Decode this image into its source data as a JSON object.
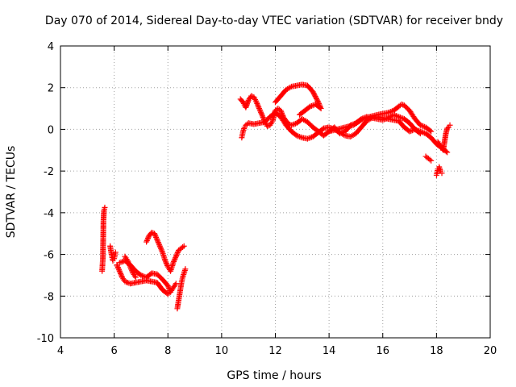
{
  "chart_data": {
    "type": "scatter",
    "title": "Day 070 of 2014, Sidereal Day-to-day VTEC variation (SDTVAR) for receiver bndy",
    "xlabel": "GPS time / hours",
    "ylabel": "SDTVAR / TECUs",
    "xlim": [
      4,
      20
    ],
    "ylim": [
      -10,
      4
    ],
    "xticks": [
      4,
      6,
      8,
      10,
      12,
      14,
      16,
      18,
      20
    ],
    "yticks": [
      -10,
      -8,
      -6,
      -4,
      -2,
      0,
      2,
      4
    ],
    "grid": true,
    "marker": "+",
    "color": "#ff0000",
    "series": [
      {
        "name": "SDTVAR",
        "segments": [
          [
            [
              5.55,
              -6.8
            ],
            [
              5.58,
              -6.2
            ],
            [
              5.6,
              -4.4
            ],
            [
              5.62,
              -3.9
            ],
            [
              5.65,
              -3.75
            ]
          ],
          [
            [
              5.85,
              -5.6
            ],
            [
              5.9,
              -6.0
            ],
            [
              5.95,
              -6.3
            ],
            [
              6.0,
              -6.2
            ],
            [
              6.05,
              -5.9
            ]
          ],
          [
            [
              6.1,
              -6.5
            ],
            [
              6.2,
              -6.8
            ],
            [
              6.3,
              -7.1
            ],
            [
              6.4,
              -7.3
            ],
            [
              6.6,
              -7.4
            ],
            [
              6.8,
              -7.35
            ],
            [
              7.0,
              -7.3
            ],
            [
              7.2,
              -7.25
            ],
            [
              7.4,
              -7.3
            ],
            [
              7.6,
              -7.35
            ],
            [
              7.8,
              -7.7
            ],
            [
              8.0,
              -7.9
            ],
            [
              8.1,
              -7.8
            ],
            [
              8.2,
              -7.6
            ],
            [
              8.3,
              -7.4
            ]
          ],
          [
            [
              6.2,
              -6.4
            ],
            [
              6.4,
              -6.3
            ],
            [
              6.6,
              -6.5
            ],
            [
              6.8,
              -6.8
            ],
            [
              7.0,
              -7.0
            ],
            [
              7.2,
              -7.1
            ],
            [
              7.4,
              -6.9
            ],
            [
              7.6,
              -6.95
            ],
            [
              7.8,
              -7.2
            ],
            [
              8.0,
              -7.5
            ],
            [
              8.1,
              -7.8
            ]
          ],
          [
            [
              7.2,
              -5.4
            ],
            [
              7.3,
              -5.1
            ],
            [
              7.4,
              -4.95
            ],
            [
              7.5,
              -5.0
            ],
            [
              7.6,
              -5.3
            ],
            [
              7.7,
              -5.6
            ],
            [
              7.8,
              -5.9
            ],
            [
              7.9,
              -6.3
            ],
            [
              8.0,
              -6.6
            ],
            [
              8.1,
              -6.8
            ],
            [
              8.2,
              -6.4
            ],
            [
              8.3,
              -6.1
            ],
            [
              8.4,
              -5.8
            ],
            [
              8.5,
              -5.7
            ],
            [
              8.6,
              -5.6
            ]
          ],
          [
            [
              6.4,
              -6.1
            ],
            [
              6.5,
              -6.3
            ],
            [
              6.6,
              -6.6
            ],
            [
              6.7,
              -6.9
            ],
            [
              6.8,
              -7.1
            ]
          ],
          [
            [
              8.35,
              -8.6
            ],
            [
              8.4,
              -8.2
            ],
            [
              8.45,
              -7.8
            ],
            [
              8.5,
              -7.4
            ],
            [
              8.55,
              -7.1
            ],
            [
              8.6,
              -6.9
            ],
            [
              8.65,
              -6.7
            ]
          ],
          [
            [
              10.75,
              -0.4
            ],
            [
              10.8,
              -0.1
            ],
            [
              10.85,
              0.1
            ],
            [
              10.9,
              0.2
            ],
            [
              11.0,
              0.3
            ],
            [
              11.2,
              0.25
            ],
            [
              11.4,
              0.3
            ],
            [
              11.6,
              0.35
            ],
            [
              11.8,
              0.6
            ],
            [
              12.0,
              0.8
            ],
            [
              12.2,
              0.6
            ],
            [
              12.4,
              0.2
            ],
            [
              12.6,
              -0.1
            ],
            [
              12.8,
              -0.3
            ],
            [
              13.0,
              -0.4
            ],
            [
              13.2,
              -0.45
            ],
            [
              13.4,
              -0.35
            ],
            [
              13.6,
              -0.15
            ],
            [
              13.8,
              0.05
            ],
            [
              14.0,
              0.1
            ],
            [
              14.2,
              0.0
            ],
            [
              14.4,
              -0.15
            ],
            [
              14.6,
              -0.3
            ],
            [
              14.8,
              -0.35
            ],
            [
              15.0,
              -0.2
            ],
            [
              15.2,
              0.1
            ],
            [
              15.4,
              0.4
            ],
            [
              15.6,
              0.55
            ],
            [
              15.8,
              0.6
            ],
            [
              16.0,
              0.55
            ],
            [
              16.2,
              0.5
            ],
            [
              16.4,
              0.45
            ],
            [
              16.6,
              0.4
            ],
            [
              16.8,
              0.1
            ],
            [
              17.0,
              -0.1
            ],
            [
              17.2,
              0.0
            ],
            [
              17.4,
              -0.1
            ],
            [
              17.6,
              -0.2
            ],
            [
              17.8,
              -0.4
            ],
            [
              18.0,
              -0.7
            ],
            [
              18.2,
              -0.9
            ],
            [
              18.4,
              -1.1
            ]
          ],
          [
            [
              10.7,
              1.45
            ],
            [
              10.8,
              1.3
            ],
            [
              10.9,
              1.05
            ],
            [
              11.0,
              1.4
            ],
            [
              11.1,
              1.6
            ],
            [
              11.2,
              1.55
            ],
            [
              11.3,
              1.3
            ],
            [
              11.4,
              1.0
            ],
            [
              11.5,
              0.7
            ],
            [
              11.6,
              0.4
            ],
            [
              11.7,
              0.15
            ],
            [
              11.8,
              0.2
            ],
            [
              11.9,
              0.4
            ],
            [
              12.0,
              0.9
            ],
            [
              12.1,
              1.0
            ],
            [
              12.2,
              0.9
            ],
            [
              12.3,
              0.6
            ],
            [
              12.4,
              0.4
            ],
            [
              12.5,
              0.25
            ],
            [
              12.6,
              0.2
            ],
            [
              12.8,
              0.3
            ],
            [
              13.0,
              0.5
            ],
            [
              13.2,
              0.35
            ],
            [
              13.4,
              0.1
            ],
            [
              13.6,
              -0.1
            ],
            [
              13.8,
              -0.3
            ],
            [
              14.0,
              -0.1
            ],
            [
              14.2,
              0.1
            ],
            [
              14.4,
              -0.2
            ],
            [
              14.6,
              -0.1
            ],
            [
              14.8,
              0.2
            ],
            [
              15.0,
              0.3
            ],
            [
              15.2,
              0.5
            ],
            [
              15.4,
              0.6
            ],
            [
              15.6,
              0.55
            ],
            [
              15.8,
              0.5
            ],
            [
              16.0,
              0.45
            ],
            [
              16.2,
              0.55
            ],
            [
              16.4,
              0.7
            ],
            [
              16.6,
              0.6
            ],
            [
              16.8,
              0.5
            ],
            [
              17.0,
              0.3
            ],
            [
              17.2,
              0.0
            ],
            [
              17.4,
              -0.2
            ]
          ],
          [
            [
              12.0,
              1.3
            ],
            [
              12.2,
              1.6
            ],
            [
              12.4,
              1.9
            ],
            [
              12.6,
              2.05
            ],
            [
              12.8,
              2.1
            ],
            [
              13.0,
              2.15
            ],
            [
              13.2,
              2.1
            ],
            [
              13.4,
              1.8
            ],
            [
              13.6,
              1.3
            ],
            [
              13.7,
              1.0
            ],
            [
              13.5,
              1.2
            ],
            [
              13.3,
              1.1
            ],
            [
              13.1,
              0.9
            ],
            [
              12.9,
              0.7
            ]
          ],
          [
            [
              14.0,
              -0.1
            ],
            [
              14.3,
              0.0
            ],
            [
              14.6,
              0.1
            ],
            [
              14.9,
              0.2
            ],
            [
              15.2,
              0.45
            ],
            [
              15.5,
              0.6
            ],
            [
              15.8,
              0.7
            ],
            [
              16.0,
              0.75
            ],
            [
              16.2,
              0.8
            ],
            [
              16.4,
              0.9
            ],
            [
              16.6,
              1.1
            ],
            [
              16.7,
              1.2
            ],
            [
              16.8,
              1.15
            ],
            [
              17.0,
              0.9
            ],
            [
              17.2,
              0.5
            ],
            [
              17.4,
              0.2
            ],
            [
              17.6,
              0.1
            ],
            [
              17.8,
              -0.1
            ]
          ],
          [
            [
              17.6,
              -1.3
            ],
            [
              17.7,
              -1.4
            ],
            [
              17.8,
              -1.5
            ]
          ],
          [
            [
              18.0,
              -2.2
            ],
            [
              18.05,
              -1.9
            ],
            [
              18.1,
              -1.8
            ],
            [
              18.15,
              -2.0
            ],
            [
              18.2,
              -2.1
            ]
          ],
          [
            [
              18.05,
              -0.6
            ],
            [
              18.15,
              -0.8
            ],
            [
              18.25,
              -1.0
            ],
            [
              18.35,
              -0.2
            ],
            [
              18.4,
              0.05
            ],
            [
              18.45,
              0.1
            ],
            [
              18.5,
              0.2
            ]
          ]
        ]
      }
    ]
  }
}
